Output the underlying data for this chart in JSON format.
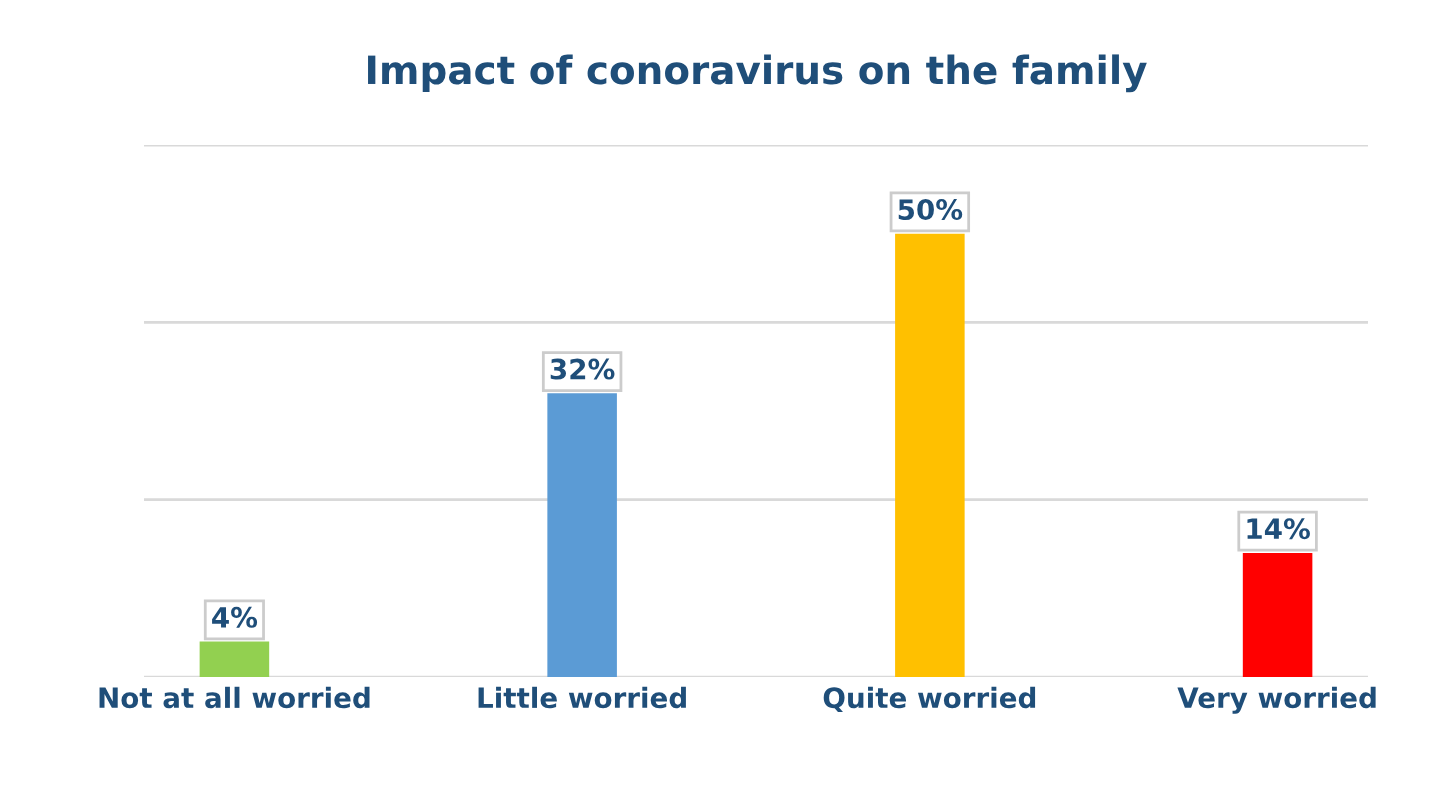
{
  "chart_data": {
    "type": "bar",
    "title": "Impact of conoravirus on the family",
    "categories": [
      "Not at all worried",
      "Little worried",
      "Quite worried",
      "Very worried"
    ],
    "values": [
      4,
      32,
      50,
      14
    ],
    "colors": [
      "#92d050",
      "#5b9bd5",
      "#ffc000",
      "#ff0000"
    ],
    "value_labels": [
      "4%",
      "32%",
      "50%",
      "14%"
    ],
    "ylim": [
      0,
      60
    ],
    "yticks": [
      {
        "value": 0,
        "label": null
      },
      {
        "value": 20,
        "label": null
      },
      {
        "value": 40,
        "label": null
      },
      {
        "value": 60,
        "label": null
      }
    ],
    "grid": "y",
    "tick_labels": "x"
  }
}
